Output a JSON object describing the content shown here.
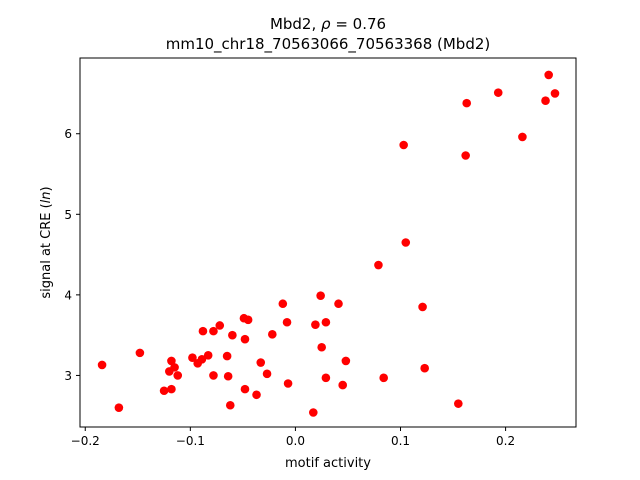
{
  "chart_data": {
    "type": "scatter",
    "title_line1": "Mbd2, ρ = 0.76",
    "title_line2": "mm10_chr18_70563066_70563368 (Mbd2)",
    "xlabel": "motif activity",
    "ylabel_prefix": "signal at CRE (",
    "ylabel_italic": "ln",
    "ylabel_suffix": ")",
    "xlim": [
      -0.205,
      0.267
    ],
    "ylim": [
      2.36,
      6.94
    ],
    "xticks": [
      -0.2,
      -0.1,
      0.0,
      0.1,
      0.2
    ],
    "xtick_labels": [
      "−0.2",
      "−0.1",
      "0.0",
      "0.1",
      "0.2"
    ],
    "yticks": [
      3,
      4,
      5,
      6
    ],
    "ytick_labels": [
      "3",
      "4",
      "5",
      "6"
    ],
    "grid": false,
    "marker_color": "#ff0000",
    "points": [
      {
        "x": -0.184,
        "y": 3.13
      },
      {
        "x": -0.168,
        "y": 2.6
      },
      {
        "x": -0.148,
        "y": 3.28
      },
      {
        "x": -0.125,
        "y": 2.81
      },
      {
        "x": -0.12,
        "y": 3.05
      },
      {
        "x": -0.118,
        "y": 3.18
      },
      {
        "x": -0.118,
        "y": 2.83
      },
      {
        "x": -0.115,
        "y": 3.1
      },
      {
        "x": -0.112,
        "y": 3.0
      },
      {
        "x": -0.098,
        "y": 3.22
      },
      {
        "x": -0.093,
        "y": 3.15
      },
      {
        "x": -0.089,
        "y": 3.2
      },
      {
        "x": -0.088,
        "y": 3.55
      },
      {
        "x": -0.083,
        "y": 3.25
      },
      {
        "x": -0.078,
        "y": 3.55
      },
      {
        "x": -0.078,
        "y": 3.0
      },
      {
        "x": -0.072,
        "y": 3.62
      },
      {
        "x": -0.065,
        "y": 3.24
      },
      {
        "x": -0.064,
        "y": 2.99
      },
      {
        "x": -0.062,
        "y": 2.63
      },
      {
        "x": -0.06,
        "y": 3.5
      },
      {
        "x": -0.049,
        "y": 3.71
      },
      {
        "x": -0.048,
        "y": 3.45
      },
      {
        "x": -0.048,
        "y": 2.83
      },
      {
        "x": -0.045,
        "y": 3.69
      },
      {
        "x": -0.037,
        "y": 2.76
      },
      {
        "x": -0.033,
        "y": 3.16
      },
      {
        "x": -0.027,
        "y": 3.02
      },
      {
        "x": -0.022,
        "y": 3.51
      },
      {
        "x": -0.012,
        "y": 3.89
      },
      {
        "x": -0.008,
        "y": 3.66
      },
      {
        "x": -0.007,
        "y": 2.9
      },
      {
        "x": 0.017,
        "y": 2.54
      },
      {
        "x": 0.019,
        "y": 3.63
      },
      {
        "x": 0.024,
        "y": 3.99
      },
      {
        "x": 0.025,
        "y": 3.35
      },
      {
        "x": 0.029,
        "y": 3.66
      },
      {
        "x": 0.029,
        "y": 2.97
      },
      {
        "x": 0.041,
        "y": 3.89
      },
      {
        "x": 0.045,
        "y": 2.88
      },
      {
        "x": 0.048,
        "y": 3.18
      },
      {
        "x": 0.079,
        "y": 4.37
      },
      {
        "x": 0.084,
        "y": 2.97
      },
      {
        "x": 0.103,
        "y": 5.86
      },
      {
        "x": 0.105,
        "y": 4.65
      },
      {
        "x": 0.121,
        "y": 3.85
      },
      {
        "x": 0.123,
        "y": 3.09
      },
      {
        "x": 0.155,
        "y": 2.65
      },
      {
        "x": 0.162,
        "y": 5.73
      },
      {
        "x": 0.163,
        "y": 6.38
      },
      {
        "x": 0.193,
        "y": 6.51
      },
      {
        "x": 0.216,
        "y": 5.96
      },
      {
        "x": 0.238,
        "y": 6.41
      },
      {
        "x": 0.241,
        "y": 6.73
      },
      {
        "x": 0.247,
        "y": 6.5
      }
    ]
  }
}
